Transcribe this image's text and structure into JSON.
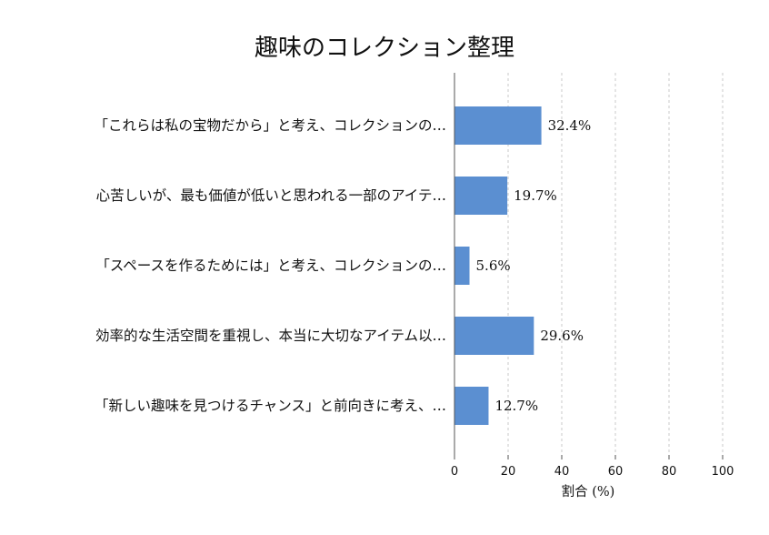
{
  "chart_data": {
    "type": "bar",
    "orientation": "horizontal",
    "title": "趣味のコレクション整理",
    "categories": [
      "「これらは私の宝物だから」と考え、コレクションの…",
      "心苦しいが、最も価値が低いと思われる一部のアイテ…",
      "「スペースを作るためには」と考え、コレクションの…",
      "効率的な生活空間を重視し、本当に大切なアイテム以…",
      "「新しい趣味を見つけるチャンス」と前向きに考え、…"
    ],
    "values": [
      32.4,
      19.7,
      5.6,
      29.6,
      12.7
    ],
    "value_labels": [
      "32.4%",
      "19.7%",
      "5.6%",
      "29.6%",
      "12.7%"
    ],
    "xlabel": "割合 (%)",
    "ylabel": "",
    "xlim": [
      0,
      100
    ],
    "xticks": [
      0,
      20,
      40,
      60,
      80,
      100
    ],
    "grid": true,
    "bar_color": "#5b8fd1"
  }
}
